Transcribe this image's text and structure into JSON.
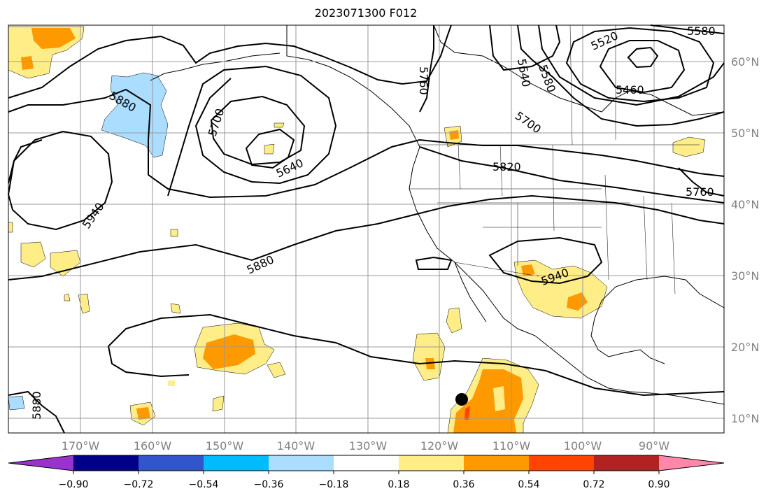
{
  "title": "2023071300 F012",
  "lon_labels": [
    "170°W",
    "160°W",
    "150°W",
    "140°W",
    "130°W",
    "120°W",
    "110°W",
    "100°W",
    "90°W"
  ],
  "lat_labels": [
    "60°N",
    "50°N",
    "40°N",
    "30°N",
    "20°N",
    "10°N"
  ],
  "contour_labels": [
    "5880",
    "5700",
    "5640",
    "5940",
    "5880",
    "5760",
    "5640",
    "5580",
    "5520",
    "5460",
    "5700",
    "5820",
    "5760",
    "5940",
    "5880",
    "5580"
  ],
  "colorbar": {
    "colors": [
      "#9933cc",
      "#000088",
      "#3355cc",
      "#00bbff",
      "#aaddff",
      "#ffffff",
      "#ffee88",
      "#ff9900",
      "#ff4400",
      "#b22222",
      "#ff88aa"
    ],
    "tick_labels": [
      "−0.90",
      "−0.72",
      "−0.54",
      "−0.36",
      "−0.18",
      "0.18",
      "0.36",
      "0.54",
      "0.72",
      "0.90"
    ]
  }
}
